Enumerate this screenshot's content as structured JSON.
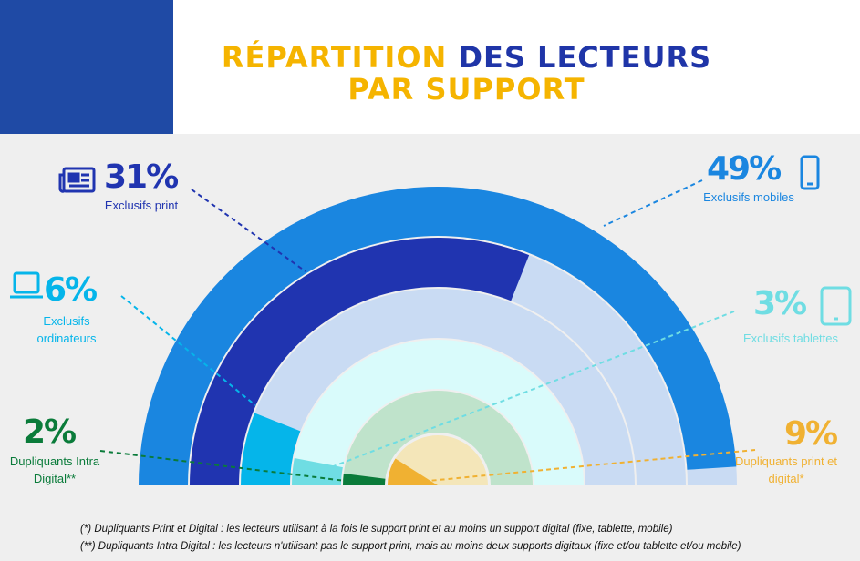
{
  "chart_data": {
    "type": "radial-bar",
    "title_parts": [
      "RÉPARTITION",
      "DES LECTEURS",
      "PAR SUPPORT"
    ],
    "rlim": [
      0,
      50
    ],
    "series": [
      {
        "name": "Exclusifs mobiles",
        "value": 49,
        "value_label": "49%",
        "color": "#1a86e0",
        "track": "#c9dbf3"
      },
      {
        "name": "Exclusifs print",
        "value": 31,
        "value_label": "31%",
        "color": "#2034b0",
        "track": "#c9dbf3"
      },
      {
        "name": "Exclusifs ordinateurs",
        "value": 6,
        "value_label": "6%",
        "color": "#05b5ea",
        "track": "#c9dbf3"
      },
      {
        "name": "Exclusifs tablettes",
        "value": 3,
        "value_label": "3%",
        "color": "#6fdde3",
        "track": "#d9fbfb"
      },
      {
        "name": "Dupliquants Intra Digital**",
        "value": 2,
        "value_label": "2%",
        "color": "#0a7b3a",
        "track": "#bfe3cb"
      },
      {
        "name": "Dupliquants print et digital*",
        "value": 9,
        "value_label": "9%",
        "color": "#f0b132",
        "track": "#f4e6b9"
      }
    ],
    "footnotes": [
      "(*) Dupliquants Print et Digital : les lecteurs utilisant à la fois le support print et au moins un support digital (fixe, tablette, mobile)",
      "(**) Dupliquants Intra Digital : les lecteurs n'utilisant pas le support print, mais au moins deux supports digitaux (fixe et/ou tablette et/ou mobile)"
    ]
  }
}
